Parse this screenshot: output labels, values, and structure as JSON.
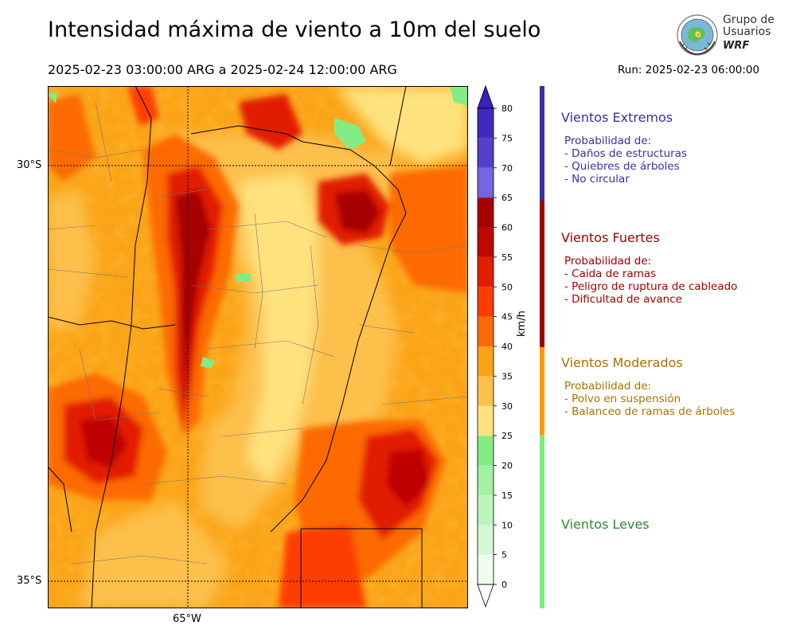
{
  "header": {
    "title": "Intensidad máxima de viento a 10m del suelo",
    "period": "2025-02-23 03:00:00 ARG  a  2025-02-24 12:00:00 ARG",
    "run": "Run: 2025-02-23 06:00:00"
  },
  "logo": {
    "line1": "Grupo de",
    "line2": "Usuarios",
    "line3": "WRF"
  },
  "map": {
    "lat_labels": [
      "30°S",
      "35°S"
    ],
    "lon_labels": [
      "65°W"
    ],
    "field": "wind speed",
    "grid_lines": "dotted"
  },
  "colorbar": {
    "unit": "km/h",
    "ticks": [
      "0",
      "5",
      "10",
      "15",
      "20",
      "25",
      "30",
      "35",
      "40",
      "45",
      "50",
      "55",
      "60",
      "65",
      "70",
      "75",
      "80"
    ],
    "levels": [
      {
        "from": 0,
        "to": 5,
        "color": "#eefeee"
      },
      {
        "from": 5,
        "to": 10,
        "color": "#d4f8d4"
      },
      {
        "from": 10,
        "to": 15,
        "color": "#bcf4bc"
      },
      {
        "from": 15,
        "to": 20,
        "color": "#a4f0a4"
      },
      {
        "from": 20,
        "to": 25,
        "color": "#84ec84"
      },
      {
        "from": 25,
        "to": 30,
        "color": "#fee27e"
      },
      {
        "from": 30,
        "to": 35,
        "color": "#fcc04c"
      },
      {
        "from": 35,
        "to": 40,
        "color": "#fba418"
      },
      {
        "from": 40,
        "to": 45,
        "color": "#fc6a06"
      },
      {
        "from": 45,
        "to": 50,
        "color": "#fe3c00"
      },
      {
        "from": 50,
        "to": 55,
        "color": "#e21e00"
      },
      {
        "from": 55,
        "to": 60,
        "color": "#c00600"
      },
      {
        "from": 60,
        "to": 65,
        "color": "#a60000"
      },
      {
        "from": 65,
        "to": 70,
        "color": "#7466e0"
      },
      {
        "from": 70,
        "to": 75,
        "color": "#5440cc"
      },
      {
        "from": 75,
        "to": 80,
        "color": "#4028c0"
      }
    ],
    "over_color": "#3c20b8",
    "under_color": "#ffffff"
  },
  "categories": [
    {
      "title": "Vientos Extremos",
      "color": "#3a2ea8",
      "bar": "#3a2ea8",
      "lines": [
        "Probabilidad de:",
        "- Daños de estructuras",
        "- Quiebres de árboles",
        "- No circular"
      ]
    },
    {
      "title": "Vientos Fuertes",
      "color": "#a00000",
      "bar": "#a00000",
      "lines": [
        "Probabilidad de:",
        "- Caida de ramas",
        "- Peligro de ruptura de cableado",
        "- Dificultad de avance"
      ]
    },
    {
      "title": "Vientos Moderados",
      "color": "#a87000",
      "bar": "#fb9a00",
      "lines": [
        "Probabilidad de:",
        "- Polvo en suspensión",
        "- Balanceo de ramas de árboles"
      ]
    },
    {
      "title": "Vientos Leves",
      "color": "#2e8a2e",
      "bar": "#78ee78",
      "lines": []
    }
  ]
}
